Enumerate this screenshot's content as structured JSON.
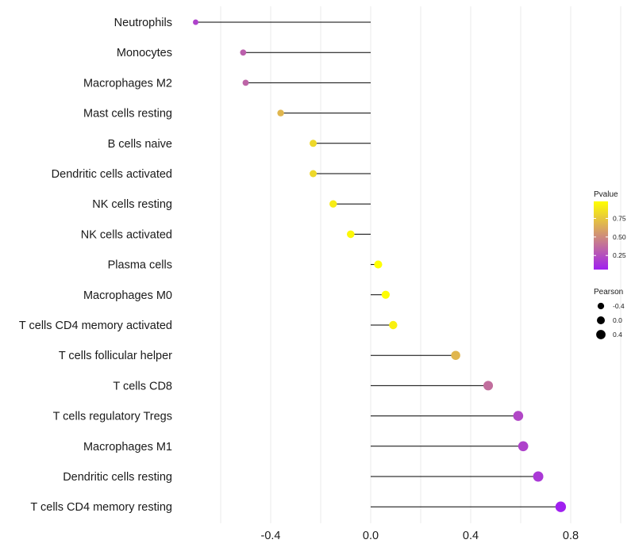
{
  "chart_data": {
    "type": "lollipop",
    "categories": [
      "Neutrophils",
      "Monocytes",
      "Macrophages M2",
      "Mast cells resting",
      "B cells naive",
      "Dendritic cells activated",
      "NK cells resting",
      "NK cells activated",
      "Plasma cells",
      "Macrophages M0",
      "T cells CD4 memory activated",
      "T cells follicular helper",
      "T cells CD8",
      "T cells regulatory  Tregs ",
      "Macrophages M1",
      "Dendritic cells resting",
      "T cells CD4 memory resting"
    ],
    "pearson": [
      -0.7,
      -0.51,
      -0.5,
      -0.36,
      -0.23,
      -0.23,
      -0.15,
      -0.08,
      0.03,
      0.06,
      0.09,
      0.34,
      0.47,
      0.59,
      0.61,
      0.67,
      0.76
    ],
    "pvalue": [
      0.2,
      0.32,
      0.34,
      0.68,
      0.82,
      0.82,
      0.9,
      0.95,
      0.98,
      0.97,
      0.92,
      0.68,
      0.38,
      0.22,
      0.2,
      0.16,
      0.06
    ],
    "xlim": [
      -0.71,
      0.84
    ],
    "xticks": [
      -0.4,
      0.0,
      0.4,
      0.8
    ],
    "xtick_labels": [
      "-0.4",
      "0.0",
      "0.4",
      "0.8"
    ],
    "xlabel": "",
    "ylabel": "",
    "legend": {
      "color_title": "Pvalue",
      "color_ticks": [
        0.75,
        0.5,
        0.25
      ],
      "color_tick_labels": [
        "0.75",
        "0.50",
        "0.25"
      ],
      "color_range": [
        0.06,
        0.98
      ],
      "color_low": "#a020f0",
      "color_high": "#ffff00",
      "size_title": "Pearson",
      "size_values": [
        -0.4,
        0.0,
        0.4
      ],
      "size_labels": [
        "-0.4",
        "0.0",
        "0.4"
      ],
      "placement": "right"
    },
    "colors": {
      "segment": "#000000",
      "gridline": "#ebebeb"
    }
  }
}
